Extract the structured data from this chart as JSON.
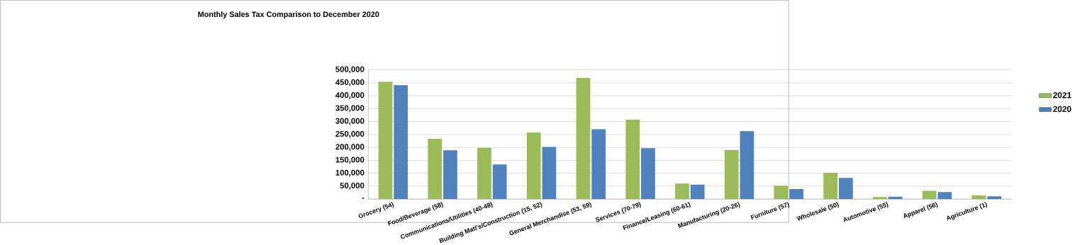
{
  "chart_data": {
    "type": "bar",
    "title": "Monthly Sales Tax Comparison to December 2020",
    "categories": [
      "Grocery (54)",
      "Food/Beverage (58)",
      "Communications/Utilities (40-48)",
      "Building Matl's/Construction (15, 52)",
      "General Merchandise (53, 59)",
      "Services (70-79)",
      "Finance/Leasing (60-61)",
      "Manufacturing (20-26)",
      "Furniture (57)",
      "Wholesale (50)",
      "Automotive (55)",
      "Apparel (56)",
      "Agriculture (1)"
    ],
    "series": [
      {
        "name": "2021",
        "color": "#9bbb59",
        "values": [
          454000,
          233000,
          198000,
          257000,
          469000,
          307000,
          60000,
          190000,
          52000,
          102000,
          8000,
          32000,
          14000
        ]
      },
      {
        "name": "2020",
        "color": "#4f81bd",
        "values": [
          441000,
          189000,
          134000,
          202000,
          270000,
          197000,
          56000,
          263000,
          39000,
          82000,
          9000,
          27000,
          11000
        ]
      }
    ],
    "ylim": [
      0,
      500000
    ],
    "yticks": [
      {
        "value": 0,
        "label": "-"
      },
      {
        "value": 50000,
        "label": "50,000"
      },
      {
        "value": 100000,
        "label": "100,000"
      },
      {
        "value": 150000,
        "label": "150,000"
      },
      {
        "value": 200000,
        "label": "200,000"
      },
      {
        "value": 250000,
        "label": "250,000"
      },
      {
        "value": 300000,
        "label": "300,000"
      },
      {
        "value": 350000,
        "label": "350,000"
      },
      {
        "value": 400000,
        "label": "400,000"
      },
      {
        "value": 450000,
        "label": "450,000"
      },
      {
        "value": 500000,
        "label": "500,000"
      }
    ],
    "grid": "y",
    "legend": "right"
  }
}
